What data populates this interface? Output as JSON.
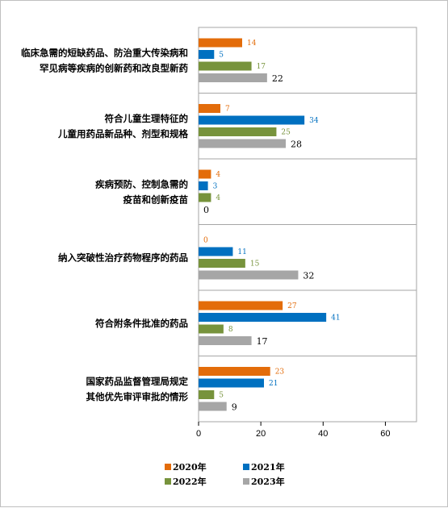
{
  "chart_data": {
    "type": "bar",
    "orientation": "horizontal",
    "title": "",
    "xlabel": "",
    "ylabel": "",
    "xlim": [
      0,
      70
    ],
    "xticks": [
      0,
      20,
      40,
      60
    ],
    "grid": false,
    "legend_position": "bottom",
    "categories": [
      [
        "临床急需的短缺药品、防治重大传染病和",
        "罕见病等疾病的创新药和改良型新药"
      ],
      [
        "符合儿童生理特征的",
        "儿童用药品新品种、剂型和规格"
      ],
      [
        "疾病预防、控制急需的",
        "疫苗和创新疫苗"
      ],
      [
        "纳入突破性治疗药物程序的药品"
      ],
      [
        "符合附条件批准的药品"
      ],
      [
        "国家药品监督管理局规定",
        "其他优先审评审批的情形"
      ]
    ],
    "series": [
      {
        "name": "2020年",
        "color": "#e36c0a",
        "values": [
          14,
          7,
          4,
          0,
          27,
          23
        ]
      },
      {
        "name": "2021年",
        "color": "#0070c0",
        "values": [
          5,
          34,
          3,
          11,
          41,
          21
        ]
      },
      {
        "name": "2022年",
        "color": "#77933c",
        "values": [
          17,
          25,
          4,
          15,
          8,
          5
        ]
      },
      {
        "name": "2023年",
        "color": "#a6a6a6",
        "values": [
          22,
          28,
          0,
          32,
          17,
          9
        ]
      }
    ]
  }
}
